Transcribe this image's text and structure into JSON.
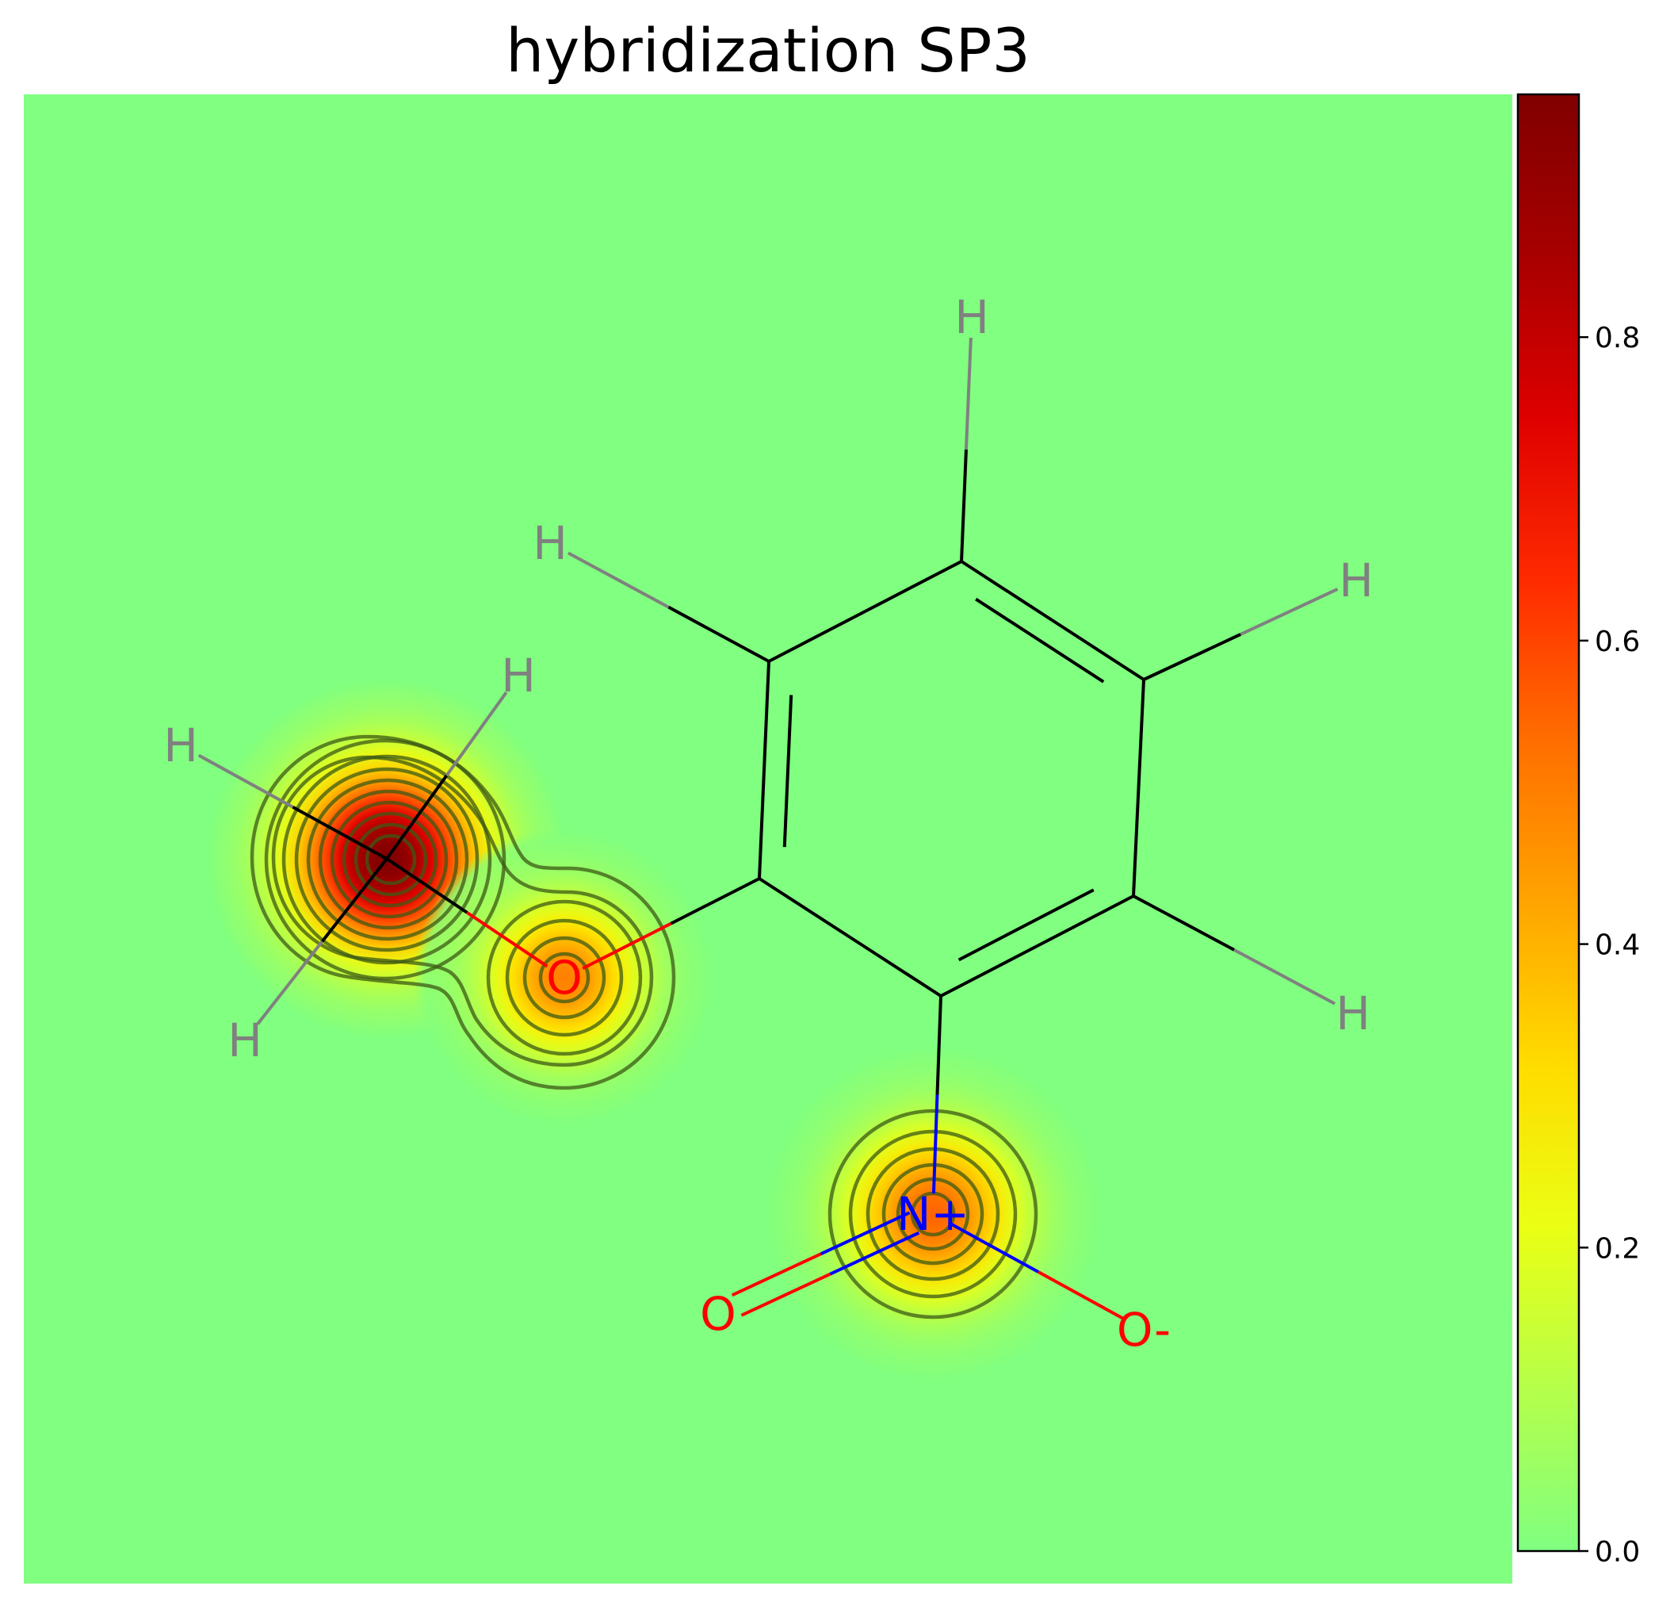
{
  "chart_data": {
    "type": "heatmap",
    "title": "hybridization SP3",
    "colormap": "jet-like (green to yellow to red to dark red)",
    "color_stops": [
      "#80ff80",
      "#b5ff4a",
      "#eaff14",
      "#ffdc00",
      "#ffa500",
      "#ff6e00",
      "#ff2a00",
      "#de0000",
      "#a80000",
      "#800000"
    ],
    "background_color": "#80ff80",
    "colorbar": {
      "range": [
        0,
        0.96
      ],
      "ticks": [
        0.0,
        0.2,
        0.4,
        0.6,
        0.8
      ],
      "tick_labels": [
        "0.0",
        "0.2",
        "0.4",
        "0.6",
        "0.8"
      ]
    },
    "contour_levels": 10,
    "contour_color": "#3c5a14",
    "peaks": [
      {
        "atom": "C (methyl)",
        "value": 0.96
      },
      {
        "atom": "O (ether)",
        "value": 0.5
      },
      {
        "atom": "N+",
        "value": 0.55
      }
    ],
    "molecule": {
      "atoms": [
        {
          "id": "c_me",
          "element": "C",
          "label": ""
        },
        {
          "id": "o1",
          "element": "O",
          "label": "O",
          "color": "#ff0000"
        },
        {
          "id": "c1",
          "element": "C",
          "label": ""
        },
        {
          "id": "c2",
          "element": "C",
          "label": ""
        },
        {
          "id": "c3",
          "element": "C",
          "label": ""
        },
        {
          "id": "c4",
          "element": "C",
          "label": ""
        },
        {
          "id": "c5",
          "element": "C",
          "label": ""
        },
        {
          "id": "c6",
          "element": "C",
          "label": ""
        },
        {
          "id": "n1",
          "element": "N",
          "label": "N+",
          "color": "#0000ff"
        },
        {
          "id": "o2",
          "element": "O",
          "label": "O",
          "color": "#ff0000"
        },
        {
          "id": "o3",
          "element": "O",
          "label": "O-",
          "color": "#ff0000"
        },
        {
          "id": "h1",
          "element": "H",
          "label": "H",
          "color": "#808080"
        },
        {
          "id": "h2",
          "element": "H",
          "label": "H",
          "color": "#808080"
        },
        {
          "id": "h3",
          "element": "H",
          "label": "H",
          "color": "#808080"
        },
        {
          "id": "h4",
          "element": "H",
          "label": "H",
          "color": "#808080"
        },
        {
          "id": "h5",
          "element": "H",
          "label": "H",
          "color": "#808080"
        },
        {
          "id": "h6",
          "element": "H",
          "label": "H",
          "color": "#808080"
        },
        {
          "id": "h7",
          "element": "H",
          "label": "H",
          "color": "#808080"
        }
      ],
      "bonds": [
        {
          "from": "c_me",
          "to": "o1",
          "order": 1
        },
        {
          "from": "o1",
          "to": "c1",
          "order": 1
        },
        {
          "from": "c1",
          "to": "c2",
          "order": 2
        },
        {
          "from": "c2",
          "to": "c3",
          "order": 1
        },
        {
          "from": "c3",
          "to": "c4",
          "order": 2
        },
        {
          "from": "c4",
          "to": "c5",
          "order": 1
        },
        {
          "from": "c5",
          "to": "c6",
          "order": 2
        },
        {
          "from": "c6",
          "to": "c1",
          "order": 1
        },
        {
          "from": "c6",
          "to": "n1",
          "order": 1
        },
        {
          "from": "n1",
          "to": "o2",
          "order": 2
        },
        {
          "from": "n1",
          "to": "o3",
          "order": 1
        },
        {
          "from": "c_me",
          "to": "h1",
          "order": 1
        },
        {
          "from": "c_me",
          "to": "h2",
          "order": 1
        },
        {
          "from": "c_me",
          "to": "h3",
          "order": 1
        },
        {
          "from": "c2",
          "to": "h4",
          "order": 1
        },
        {
          "from": "c3",
          "to": "h5",
          "order": 1
        },
        {
          "from": "c4",
          "to": "h6",
          "order": 1
        },
        {
          "from": "c5",
          "to": "h7",
          "order": 1
        }
      ]
    }
  }
}
